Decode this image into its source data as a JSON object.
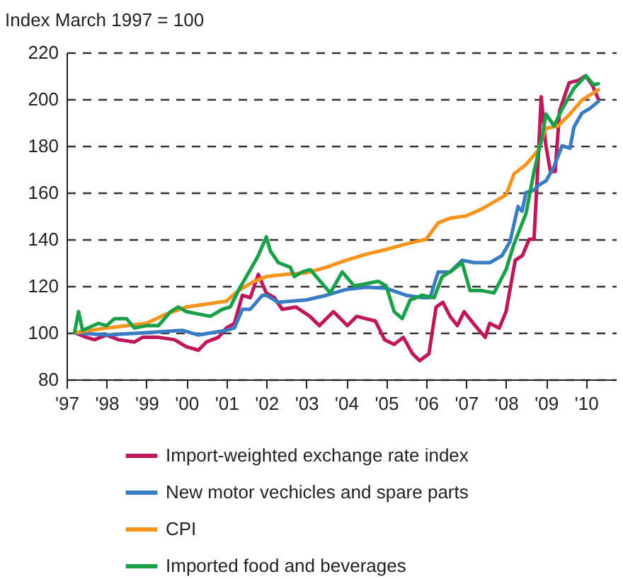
{
  "chart_data": {
    "type": "line",
    "ylabel": "Index March 1997 = 100",
    "xlim": [
      1997,
      2010.75
    ],
    "ylim": [
      80,
      220
    ],
    "xticks": [
      {
        "value": 1997,
        "label": "'97"
      },
      {
        "value": 1998,
        "label": "'98"
      },
      {
        "value": 1999,
        "label": "'99"
      },
      {
        "value": 2000,
        "label": "'00"
      },
      {
        "value": 2001,
        "label": "'01"
      },
      {
        "value": 2002,
        "label": "'02"
      },
      {
        "value": 2003,
        "label": "'03"
      },
      {
        "value": 2004,
        "label": "'04"
      },
      {
        "value": 2005,
        "label": "'05"
      },
      {
        "value": 2006,
        "label": "'06"
      },
      {
        "value": 2007,
        "label": "'07"
      },
      {
        "value": 2008,
        "label": "'08"
      },
      {
        "value": 2009,
        "label": "'09"
      },
      {
        "value": 2010,
        "label": "'10"
      }
    ],
    "yticks": [
      80,
      100,
      120,
      140,
      160,
      180,
      200,
      220
    ],
    "grid": "y",
    "legend": "bottom",
    "series": [
      {
        "name": "Import-weighted exchange rate index",
        "color": "#c0175b",
        "x": [
          1997.2,
          1997.5,
          1997.7,
          1998.0,
          1998.3,
          1998.7,
          1998.9,
          1999.3,
          1999.7,
          2000.0,
          2000.3,
          2000.5,
          2000.8,
          2001.0,
          2001.2,
          2001.4,
          2001.6,
          2001.8,
          2002.0,
          2002.2,
          2002.4,
          2002.74,
          2003.09,
          2003.33,
          2003.68,
          2004.03,
          2004.26,
          2004.73,
          2004.96,
          2005.2,
          2005.43,
          2005.66,
          2005.84,
          2006.07,
          2006.25,
          2006.42,
          2006.6,
          2006.78,
          2006.95,
          2007.18,
          2007.48,
          2007.59,
          2007.83,
          2008.0,
          2008.23,
          2008.41,
          2008.58,
          2008.7,
          2008.79,
          2008.88,
          2008.99,
          2009.11,
          2009.23,
          2009.34,
          2009.58,
          2009.81,
          2009.99,
          2010.16,
          2010.31
        ],
        "values": [
          100,
          98,
          97,
          99,
          97,
          96,
          98,
          98,
          97,
          94,
          92.5,
          96,
          98,
          102,
          104,
          116,
          115,
          125,
          117,
          115,
          110,
          111,
          107,
          103,
          109,
          103,
          107,
          105,
          97,
          95,
          98,
          91,
          88,
          91,
          111,
          113,
          107,
          103,
          109,
          104,
          98,
          104,
          102,
          109,
          131,
          133,
          140,
          140,
          169,
          201,
          181,
          169,
          169,
          195,
          207,
          208,
          210,
          206,
          200
        ]
      },
      {
        "name": "New motor vechicles and spare parts",
        "color": "#3a7cc4",
        "x": [
          1997.2,
          1998.0,
          1999.0,
          1999.9,
          2000.3,
          2001.0,
          2001.2,
          2001.4,
          2001.6,
          2001.9,
          2002.0,
          2002.3,
          2003.0,
          2003.5,
          2004.0,
          2004.5,
          2005.0,
          2005.5,
          2005.9,
          2006.1,
          2006.3,
          2006.6,
          2006.9,
          2007.2,
          2007.6,
          2007.9,
          2008.1,
          2008.3,
          2008.4,
          2008.5,
          2008.7,
          2008.8,
          2009.0,
          2009.2,
          2009.4,
          2009.6,
          2009.7,
          2009.9,
          2010.1,
          2010.31
        ],
        "values": [
          100,
          99,
          100,
          101,
          99,
          101,
          102,
          110,
          110,
          116,
          116,
          113,
          114,
          116,
          118.5,
          119.5,
          119,
          116,
          115,
          115,
          126,
          126,
          131,
          130,
          130,
          133,
          139,
          154,
          152,
          160,
          161,
          163,
          165,
          171,
          180,
          179,
          188,
          194,
          196,
          199
        ]
      },
      {
        "name": "CPI",
        "color": "#f7941d",
        "x": [
          1997.2,
          1998.0,
          1999.0,
          1999.5,
          2000.0,
          2001.0,
          2001.3,
          2001.7,
          2002.0,
          2002.5,
          2003.0,
          2003.5,
          2004.0,
          2004.5,
          2005.0,
          2005.5,
          2006.0,
          2006.3,
          2006.6,
          2007.0,
          2007.4,
          2007.8,
          2008.0,
          2008.2,
          2008.5,
          2008.8,
          2009.0,
          2009.3,
          2009.6,
          2009.9,
          2010.31
        ],
        "values": [
          100,
          102,
          104,
          108,
          111,
          113.5,
          118,
          122,
          124,
          125,
          125.6,
          128,
          131,
          133.6,
          135.6,
          138,
          140,
          147,
          149,
          150,
          153,
          157,
          159,
          168,
          172,
          178,
          187.5,
          188.5,
          193.6,
          199.6,
          204
        ]
      },
      {
        "name": "Imported food and beverages",
        "color": "#1aa049",
        "x": [
          1997.2,
          1997.3,
          1997.4,
          1997.8,
          1998.0,
          1998.2,
          1998.5,
          1998.7,
          1999.0,
          1999.3,
          1999.6,
          1999.8,
          2000.0,
          2000.3,
          2000.6,
          2000.9,
          2001.1,
          2001.3,
          2001.6,
          2001.8,
          2002.0,
          2002.1,
          2002.3,
          2002.6,
          2002.7,
          2002.9,
          2003.1,
          2003.3,
          2003.6,
          2003.9,
          2004.2,
          2004.5,
          2004.8,
          2005.0,
          2005.2,
          2005.4,
          2005.6,
          2005.9,
          2006.2,
          2006.4,
          2006.6,
          2006.9,
          2007.1,
          2007.4,
          2007.7,
          2008.0,
          2008.2,
          2008.5,
          2008.7,
          2008.9,
          2009.0,
          2009.2,
          2009.4,
          2009.7,
          2010.0,
          2010.2,
          2010.31
        ],
        "values": [
          100,
          109,
          101,
          104,
          103,
          106,
          106,
          102,
          103,
          103,
          109,
          111,
          109,
          108,
          107,
          110,
          111,
          118,
          127,
          133,
          141,
          135,
          130,
          128,
          124,
          126,
          127,
          123,
          117,
          126,
          120,
          121,
          122,
          120,
          109,
          106,
          114,
          116,
          115,
          124,
          126,
          130,
          118,
          118,
          117,
          127,
          138,
          151,
          169,
          183.5,
          193.6,
          188.5,
          195.6,
          204.6,
          210,
          206,
          206.6
        ]
      }
    ]
  }
}
